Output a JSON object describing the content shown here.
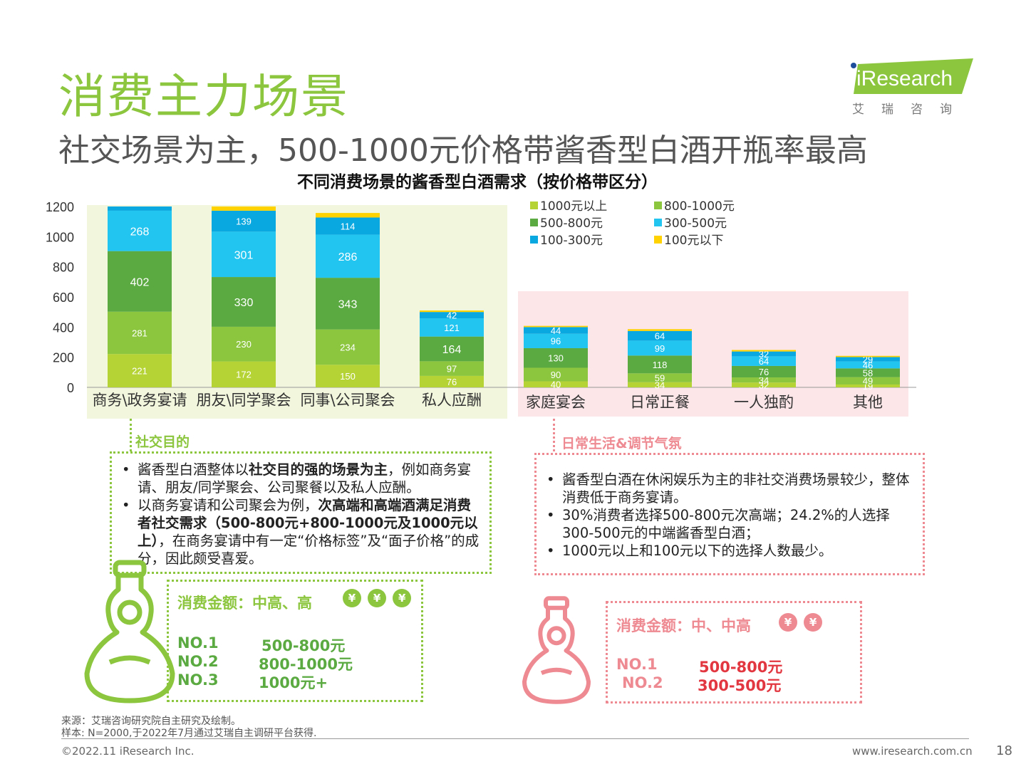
{
  "header": {
    "title": "消费主力场景",
    "subtitle": "社交场景为主，500-1000元价格带酱香型白酒开瓶率最高",
    "logo_text": "iResearch",
    "logo_sub": "艾瑞咨询"
  },
  "colors": {
    "lime": "#b5d334",
    "light_green": "#8cc63f",
    "dark_green": "#5aa941",
    "cyan": "#22c4f0",
    "blue": "#0aa8e0",
    "yellow": "#ffd200",
    "social_bg": "#f1f6dc",
    "daily_bg": "#fde6e8",
    "pink": "#ee8a92",
    "red": "#e23640"
  },
  "chart_data": {
    "type": "bar",
    "stacked": true,
    "title": "不同消费场景的酱香型白酒需求（按价格带区分）",
    "categories": [
      "商务\\政务宴请",
      "朋友\\同学聚会",
      "同事\\公司聚会",
      "私人应酬",
      "家庭宴会",
      "日常正餐",
      "一人独酌",
      "其他"
    ],
    "ylim": [
      0,
      1200
    ],
    "yticks": [
      0,
      200,
      400,
      600,
      800,
      1000,
      1200
    ],
    "legend_position": "top-right",
    "series": [
      {
        "name": "1000元以上",
        "color": "#b5d334",
        "values": [
          221,
          172,
          150,
          76,
          40,
          34,
          32,
          19
        ],
        "labels": [
          "221",
          "172",
          "150",
          "76",
          "40",
          "34",
          "32",
          "19"
        ]
      },
      {
        "name": "800-1000元",
        "color": "#8cc63f",
        "values": [
          281,
          230,
          234,
          97,
          90,
          59,
          34,
          49
        ],
        "labels": [
          "281",
          "230",
          "234",
          "97",
          "90",
          "59",
          "34",
          "49"
        ]
      },
      {
        "name": "500-800元",
        "color": "#5aa941",
        "values": [
          402,
          330,
          343,
          164,
          130,
          118,
          76,
          58
        ],
        "labels": [
          "402",
          "330",
          "343",
          "164",
          "130",
          "118",
          "76",
          "58"
        ]
      },
      {
        "name": "300-500元",
        "color": "#22c4f0",
        "values": [
          268,
          301,
          286,
          121,
          96,
          99,
          64,
          46
        ],
        "labels": [
          "268",
          "301",
          "286",
          "121",
          "96",
          "99",
          "64",
          "46"
        ]
      },
      {
        "name": "100-300元",
        "color": "#0aa8e0",
        "values": [
          40,
          139,
          114,
          42,
          44,
          64,
          32,
          29
        ],
        "labels": [
          "",
          "139",
          "114",
          "42",
          "44",
          "64",
          "32",
          "29"
        ]
      },
      {
        "name": "100元以下",
        "color": "#ffd200",
        "values": [
          0,
          30,
          30,
          10,
          8,
          12,
          10,
          8
        ],
        "labels": [
          "",
          "",
          "",
          "",
          "",
          "",
          "",
          ""
        ]
      }
    ],
    "groups": [
      {
        "from": 0,
        "to": 3,
        "bg": "#f1f6dc"
      },
      {
        "from": 4,
        "to": 7,
        "bg": "#fde6e8"
      }
    ]
  },
  "social": {
    "title": "社交目的",
    "bullet1_pre": "酱香型白酒整体以",
    "bullet1_bold": "社交目的强的场景为主",
    "bullet1_post": "，例如商务宴请、朋友/同学聚会、公司聚餐以及私人应酬。",
    "bullet2_pre": "以商务宴请和公司聚会为例，",
    "bullet2_bold": "次高端和高端酒满足消费者社交需求（500-800元+800-1000元及1000元以上）",
    "bullet2_post": "，在商务宴请中有一定“价格标签”及“面子价格”的成分，因此颇受喜爱。",
    "spend_title": "消费金额：中高、高",
    "yen": "¥",
    "ranks": [
      {
        "no": "NO.1",
        "value": "500-800元"
      },
      {
        "no": "NO.2",
        "value": "800-1000元"
      },
      {
        "no": "NO.3",
        "value": "1000元+"
      }
    ]
  },
  "daily": {
    "title": "日常生活&调节气氛",
    "bullets": [
      "酱香型白酒在休闲娱乐为主的非社交消费场景较少，整体消费低于商务宴请。",
      "30%消费者选择500-800元次高端；24.2%的人选择300-500元的中端酱香型白酒；",
      "1000元以上和100元以下的选择人数最少。"
    ],
    "spend_title": "消费金额：中、中高",
    "yen": "¥",
    "ranks": [
      {
        "no": "NO.1",
        "value": "500-800元"
      },
      {
        "no": "NO.2",
        "value": "300-500元"
      }
    ]
  },
  "footer": {
    "source": "来源：艾瑞咨询研究院自主研究及绘制。",
    "sample": "样本: N=2000,于2022年7月通过艾瑞自主调研平台获得.",
    "copyright": "©2022.11 iResearch Inc.",
    "website": "www.iresearch.com.cn",
    "page": "18"
  }
}
